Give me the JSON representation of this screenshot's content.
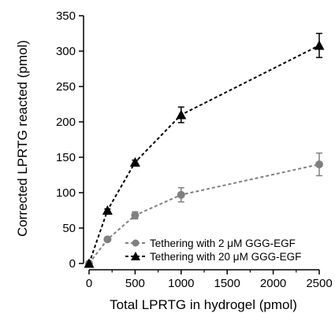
{
  "chart_data": {
    "type": "line",
    "title": "",
    "xlabel": "Total LPRTG in hydrogel (pmol)",
    "ylabel": "Corrected LPRTG reacted (pmol)",
    "xlim": [
      0,
      2500
    ],
    "ylim": [
      0,
      350
    ],
    "x_ticks": [
      "0",
      "500",
      "1000",
      "1500",
      "2000",
      "2500"
    ],
    "y_ticks": [
      "0",
      "50",
      "100",
      "150",
      "200",
      "250",
      "300",
      "350"
    ],
    "grid": false,
    "legend_position": "bottom-right",
    "series": [
      {
        "name": "Tethering with 2 μM GGG-EGF",
        "marker": "circle",
        "line_style": "dashed",
        "color": "#808080",
        "x": [
          0,
          200,
          500,
          1000,
          2500
        ],
        "y": [
          0,
          34,
          68,
          97,
          140
        ],
        "error": [
          0,
          2,
          5,
          10,
          16
        ]
      },
      {
        "name": "Tethering with 20 μM GGG-EGF",
        "marker": "triangle",
        "line_style": "dashed",
        "color": "#000000",
        "x": [
          0,
          200,
          500,
          1000,
          2500
        ],
        "y": [
          0,
          75,
          143,
          210,
          308
        ],
        "error": [
          0,
          2,
          3,
          11,
          17
        ]
      }
    ]
  }
}
